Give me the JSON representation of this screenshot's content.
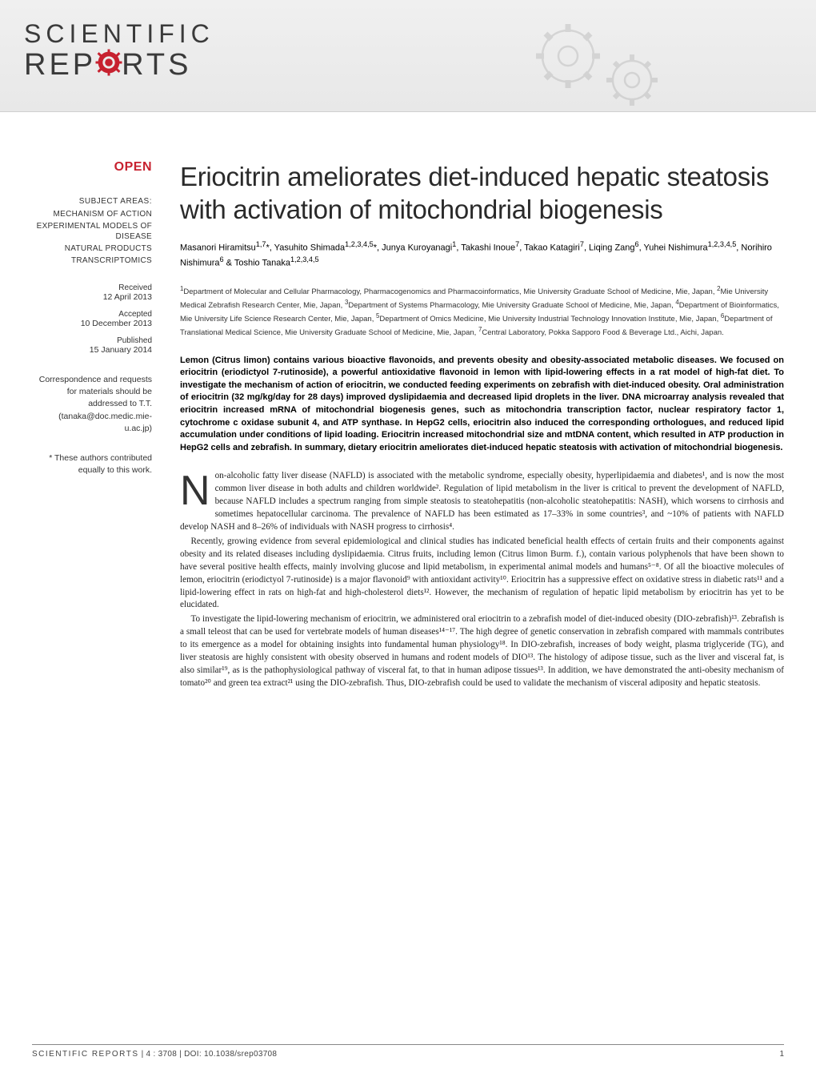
{
  "brand": {
    "line1": "SCIENTIFIC",
    "line2_pre": "REP",
    "line2_post": "RTS",
    "gear_color": "#c7212f",
    "header_bg_top": "#f0f0f0",
    "header_bg_bottom": "#e8e8e8",
    "bg_gear_color": "#b8b8b8"
  },
  "sidebar": {
    "open_label": "OPEN",
    "open_color": "#c7212f",
    "subject_heading": "SUBJECT AREAS:",
    "subjects": [
      "MECHANISM OF ACTION",
      "EXPERIMENTAL MODELS OF DISEASE",
      "NATURAL PRODUCTS",
      "TRANSCRIPTOMICS"
    ],
    "received_label": "Received",
    "received_date": "12 April 2013",
    "accepted_label": "Accepted",
    "accepted_date": "10 December 2013",
    "published_label": "Published",
    "published_date": "15 January 2014",
    "correspondence": "Correspondence and requests for materials should be addressed to T.T. (tanaka@doc.medic.mie-u.ac.jp)",
    "contributed": "* These authors contributed equally to this work."
  },
  "article": {
    "title": "Eriocitrin ameliorates diet-induced hepatic steatosis with activation of mitochondrial biogenesis",
    "authors_html": "Masanori Hiramitsu<sup>1,7</sup>*, Yasuhito Shimada<sup>1,2,3,4,5</sup>*, Junya Kuroyanagi<sup>1</sup>, Takashi Inoue<sup>7</sup>, Takao Katagiri<sup>7</sup>, Liqing Zang<sup>6</sup>, Yuhei Nishimura<sup>1,2,3,4,5</sup>, Norihiro Nishimura<sup>6</sup> & Toshio Tanaka<sup>1,2,3,4,5</sup>",
    "affiliations_html": "<sup>1</sup>Department of Molecular and Cellular Pharmacology, Pharmacogenomics and Pharmacoinformatics, Mie University Graduate School of Medicine, Mie, Japan, <sup>2</sup>Mie University Medical Zebrafish Research Center, Mie, Japan, <sup>3</sup>Department of Systems Pharmacology, Mie University Graduate School of Medicine, Mie, Japan, <sup>4</sup>Department of Bioinformatics, Mie University Life Science Research Center, Mie, Japan, <sup>5</sup>Department of Omics Medicine, Mie University Industrial Technology Innovation Institute, Mie, Japan, <sup>6</sup>Department of Translational Medical Science, Mie University Graduate School of Medicine, Mie, Japan, <sup>7</sup>Central Laboratory, Pokka Sapporo Food & Beverage Ltd., Aichi, Japan.",
    "abstract": "Lemon (Citrus limon) contains various bioactive flavonoids, and prevents obesity and obesity-associated metabolic diseases. We focused on eriocitrin (eriodictyol 7-rutinoside), a powerful antioxidative flavonoid in lemon with lipid-lowering effects in a rat model of high-fat diet. To investigate the mechanism of action of eriocitrin, we conducted feeding experiments on zebrafish with diet-induced obesity. Oral administration of eriocitrin (32 mg/kg/day for 28 days) improved dyslipidaemia and decreased lipid droplets in the liver. DNA microarray analysis revealed that eriocitrin increased mRNA of mitochondrial biogenesis genes, such as mitochondria transcription factor, nuclear respiratory factor 1, cytochrome c oxidase subunit 4, and ATP synthase. In HepG2 cells, eriocitrin also induced the corresponding orthologues, and reduced lipid accumulation under conditions of lipid loading. Eriocitrin increased mitochondrial size and mtDNA content, which resulted in ATP production in HepG2 cells and zebrafish. In summary, dietary eriocitrin ameliorates diet-induced hepatic steatosis with activation of mitochondrial biogenesis.",
    "body_paragraphs": [
      "on-alcoholic fatty liver disease (NAFLD) is associated with the metabolic syndrome, especially obesity, hyperlipidaemia and diabetes¹, and is now the most common liver disease in both adults and children worldwide². Regulation of lipid metabolism in the liver is critical to prevent the development of NAFLD, because NAFLD includes a spectrum ranging from simple steatosis to steatohepatitis (non-alcoholic steatohepatitis: NASH), which worsens to cirrhosis and sometimes hepatocellular carcinoma. The prevalence of NAFLD has been estimated as 17–33% in some countries³, and ~10% of patients with NAFLD develop NASH and 8–26% of individuals with NASH progress to cirrhosis⁴.",
      "Recently, growing evidence from several epidemiological and clinical studies has indicated beneficial health effects of certain fruits and their components against obesity and its related diseases including dyslipidaemia. Citrus fruits, including lemon (Citrus limon Burm. f.), contain various polyphenols that have been shown to have several positive health effects, mainly involving glucose and lipid metabolism, in experimental animal models and humans⁵⁻⁸. Of all the bioactive molecules of lemon, eriocitrin (eriodictyol 7-rutinoside) is a major flavonoid⁹ with antioxidant activity¹⁰. Eriocitrin has a suppressive effect on oxidative stress in diabetic rats¹¹ and a lipid-lowering effect in rats on high-fat and high-cholesterol diets¹². However, the mechanism of regulation of hepatic lipid metabolism by eriocitrin has yet to be elucidated.",
      "To investigate the lipid-lowering mechanism of eriocitrin, we administered oral eriocitrin to a zebrafish model of diet-induced obesity (DIO-zebrafish)¹³. Zebrafish is a small teleost that can be used for vertebrate models of human diseases¹⁴⁻¹⁷. The high degree of genetic conservation in zebrafish compared with mammals contributes to its emergence as a model for obtaining insights into fundamental human physiology¹⁸. In DIO-zebrafish, increases of body weight, plasma triglyceride (TG), and liver steatosis are highly consistent with obesity observed in humans and rodent models of DIO¹³. The histology of adipose tissue, such as the liver and visceral fat, is also similar¹⁹, as is the pathophysiological pathway of visceral fat, to that in human adipose tissues¹³. In addition, we have demonstrated the anti-obesity mechanism of tomato²⁰ and green tea extract²¹ using the DIO-zebrafish. Thus, DIO-zebrafish could be used to validate the mechanism of visceral adiposity and hepatic steatosis."
    ],
    "dropcap": "N"
  },
  "footer": {
    "brand": "SCIENTIFIC REPORTS",
    "citation": " | 4 : 3708 | DOI: 10.1038/srep03708",
    "page": "1"
  }
}
